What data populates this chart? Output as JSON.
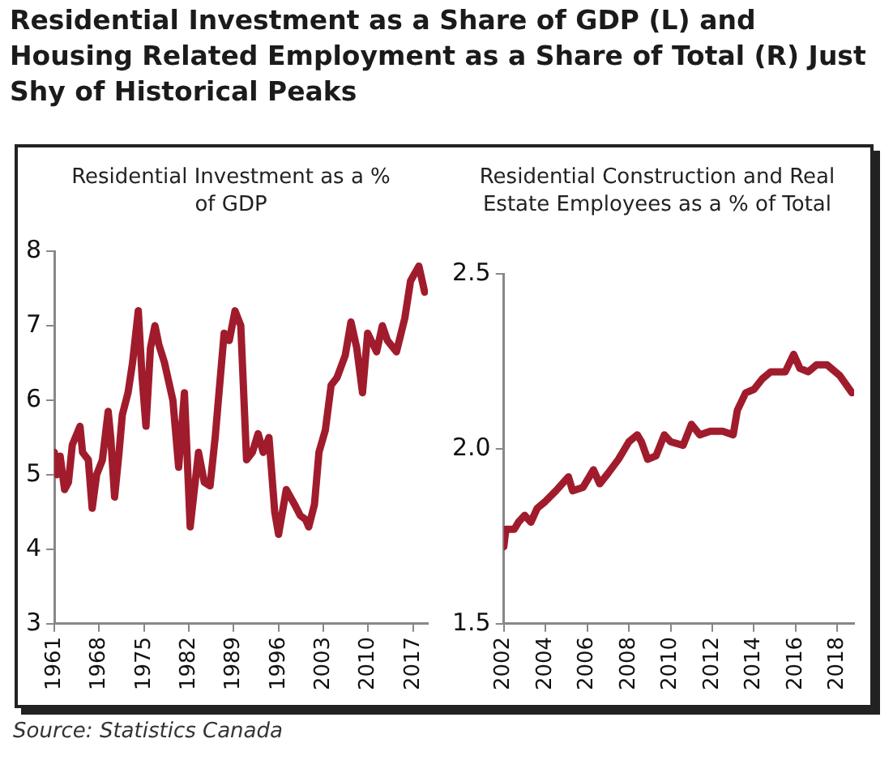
{
  "chart_data": [
    {
      "type": "line",
      "title": "Residential Investment as a Share of GDP (L) and Housing Related Employment as a Share of Total (R) Just Shy of Historical Peaks",
      "subtitle": "Residential Investment as a % of GDP",
      "xlim": [
        1961,
        2019.3
      ],
      "xticks": [
        1961,
        1968,
        1975,
        1982,
        1989,
        1996,
        2003,
        2010,
        2017
      ],
      "ylim": [
        3,
        8
      ],
      "yticks": [
        3,
        4,
        5,
        6,
        7,
        8
      ],
      "series": [
        {
          "color": "#a01c2c",
          "x": [
            1961.0,
            1961.4,
            1961.9,
            1962.6,
            1963.2,
            1963.8,
            1965.0,
            1965.4,
            1966.3,
            1966.9,
            1967.6,
            1968.5,
            1969.4,
            1969.8,
            1970.4,
            1971.1,
            1971.6,
            1972.5,
            1973.2,
            1974.1,
            1974.7,
            1975.3,
            1976.0,
            1976.7,
            1977.3,
            1978.2,
            1979.5,
            1980.4,
            1981.3,
            1982.2,
            1983.5,
            1984.4,
            1985.3,
            1986.1,
            1987.5,
            1988.3,
            1989.2,
            1990.1,
            1991.0,
            1991.9,
            1992.8,
            1993.6,
            1994.5,
            1995.4,
            1996.0,
            1997.2,
            1998.5,
            1999.4,
            2000.2,
            2000.7,
            2001.6,
            2002.3,
            2003.3,
            2004.2,
            2005.1,
            2006.4,
            2007.3,
            2008.2,
            2009.1,
            2009.9,
            2011.3,
            2012.2,
            2013.0,
            2014.4,
            2015.7,
            2016.6,
            2017.9,
            2018.8
          ],
          "values": [
            5.3,
            5.0,
            5.25,
            4.8,
            4.9,
            5.4,
            5.65,
            5.3,
            5.2,
            4.55,
            5.0,
            5.2,
            5.85,
            5.5,
            4.7,
            5.3,
            5.8,
            6.1,
            6.5,
            7.2,
            6.3,
            5.65,
            6.7,
            7.0,
            6.75,
            6.5,
            6.0,
            5.1,
            6.1,
            4.3,
            5.3,
            4.9,
            4.85,
            5.5,
            6.9,
            6.8,
            7.2,
            7.0,
            5.2,
            5.3,
            5.55,
            5.3,
            5.5,
            4.5,
            4.2,
            4.8,
            4.6,
            4.45,
            4.4,
            4.3,
            4.6,
            5.3,
            5.6,
            6.2,
            6.3,
            6.6,
            7.05,
            6.7,
            6.1,
            6.9,
            6.65,
            7.0,
            6.8,
            6.65,
            7.1,
            7.6,
            7.8,
            7.45
          ]
        }
      ]
    },
    {
      "type": "line",
      "title": "Residential Construction and Real Estate Employees as a % of Total",
      "xlim": [
        2002,
        2018.8
      ],
      "xticks": [
        2002,
        2004,
        2006,
        2008,
        2010,
        2012,
        2014,
        2016,
        2018
      ],
      "ylim": [
        1.5,
        2.5
      ],
      "yticks": [
        {
          "value": 1.5,
          "label": "1.5"
        },
        {
          "value": 2,
          "label": "2.0"
        },
        2.5
      ],
      "annotations": [
        "Source: Statistics Canada"
      ],
      "series": [
        {
          "color": "#a01c2c",
          "x": [
            2002.0,
            2002.1,
            2002.5,
            2002.7,
            2003.0,
            2003.3,
            2003.6,
            2004.0,
            2004.5,
            2005.1,
            2005.3,
            2005.8,
            2006.3,
            2006.6,
            2007.0,
            2007.5,
            2008.0,
            2008.4,
            2008.6,
            2008.9,
            2009.3,
            2009.7,
            2010.0,
            2010.6,
            2011.0,
            2011.4,
            2011.9,
            2012.5,
            2013.0,
            2013.2,
            2013.6,
            2014.0,
            2014.4,
            2014.8,
            2015.5,
            2015.9,
            2016.2,
            2016.6,
            2017.0,
            2017.5,
            2018.1,
            2018.7
          ],
          "values": [
            1.72,
            1.77,
            1.77,
            1.79,
            1.81,
            1.79,
            1.83,
            1.85,
            1.88,
            1.92,
            1.88,
            1.89,
            1.94,
            1.9,
            1.93,
            1.97,
            2.02,
            2.04,
            2.02,
            1.97,
            1.98,
            2.04,
            2.02,
            2.01,
            2.07,
            2.04,
            2.05,
            2.05,
            2.04,
            2.11,
            2.16,
            2.17,
            2.2,
            2.22,
            2.22,
            2.27,
            2.23,
            2.22,
            2.24,
            2.24,
            2.21,
            2.16
          ]
        }
      ]
    }
  ]
}
